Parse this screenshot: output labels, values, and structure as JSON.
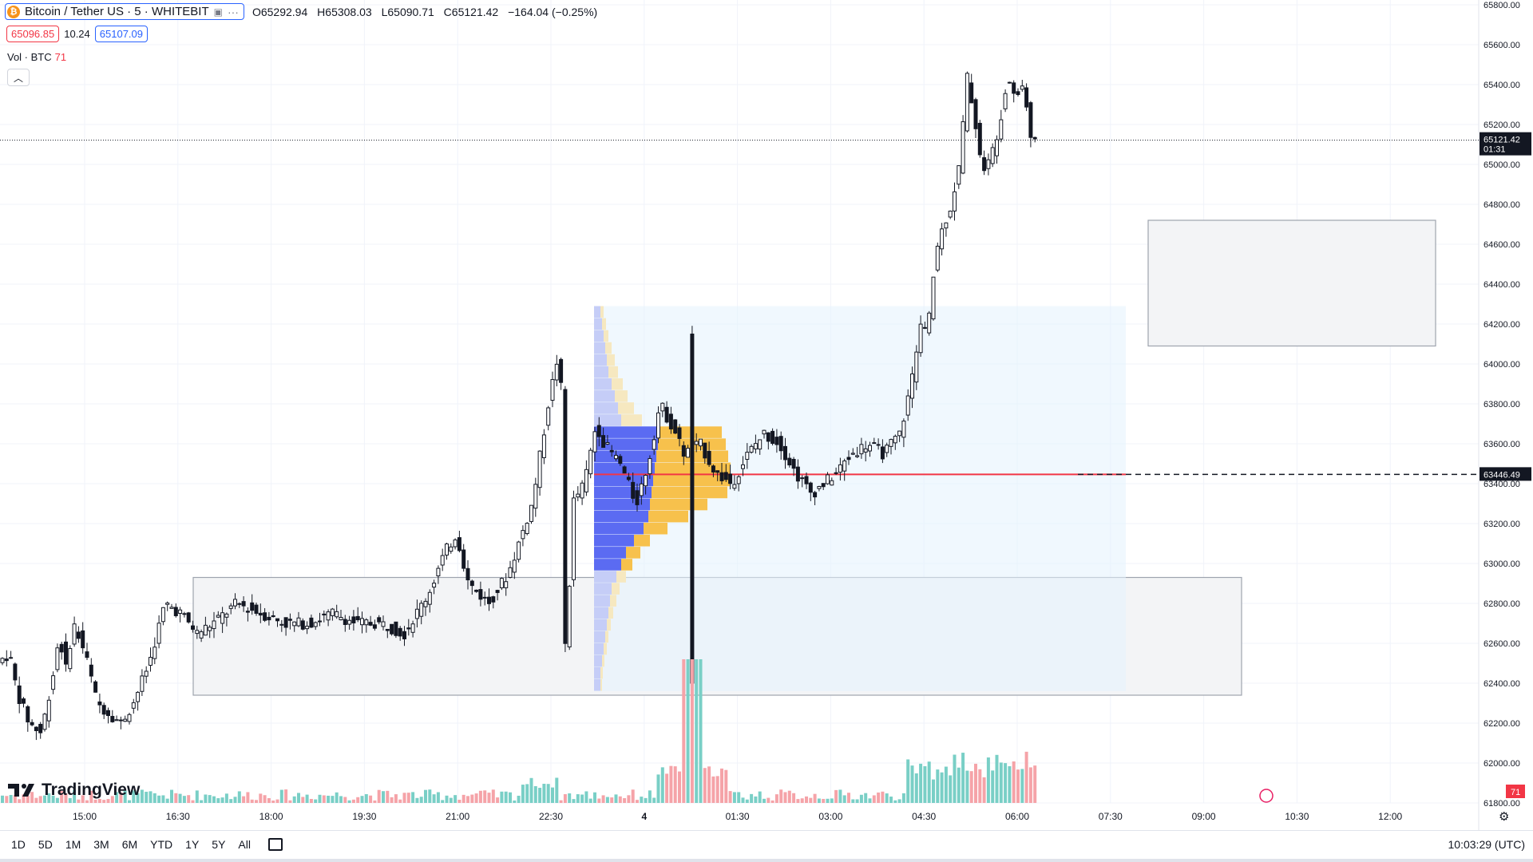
{
  "header": {
    "symbol": "Bitcoin / Tether US · 5 · WHITEBIT",
    "ohlc": {
      "o": "65292.94",
      "h": "65308.03",
      "l": "65090.71",
      "c": "65121.42",
      "chg": "−164.04 (−0.25%)"
    },
    "sell_price": "65096.85",
    "spread": "10.24",
    "buy_price": "65107.09",
    "volume_label": "Vol · BTC",
    "volume_value": "71"
  },
  "brand": "TradingView",
  "timeframes": [
    "1D",
    "5D",
    "1M",
    "3M",
    "6M",
    "YTD",
    "1Y",
    "5Y",
    "All"
  ],
  "clock": "10:03:29 (UTC)",
  "colors": {
    "up": "#26a69a",
    "down": "#ef5350",
    "candle": "#131722",
    "poc": "#f23645",
    "zone": "#f3f4f6",
    "profile_blue": "#5b6bf2",
    "profile_yellow": "#f7c14c"
  },
  "chart_data": {
    "type": "candlestick",
    "y_ticks": [
      "65800.00",
      "65600.00",
      "65400.00",
      "65200.00",
      "65000.00",
      "64800.00",
      "64600.00",
      "64400.00",
      "64200.00",
      "64000.00",
      "63800.00",
      "63600.00",
      "63400.00",
      "63200.00",
      "63000.00",
      "62800.00",
      "62600.00",
      "62400.00",
      "62200.00",
      "62000.00",
      "61800.00"
    ],
    "y_range": [
      61800,
      65800
    ],
    "x_ticks": [
      "15:00",
      "16:30",
      "18:00",
      "19:30",
      "21:00",
      "22:30",
      "4",
      "01:30",
      "03:00",
      "04:30",
      "06:00",
      "07:30",
      "09:00",
      "10:30",
      "12:00"
    ],
    "last_price": "65121.42",
    "last_countdown": "01:31",
    "poc_price": "63446.49",
    "volume_last": "71",
    "zones": [
      {
        "name": "lower-range",
        "from": 62340,
        "to": 62930
      },
      {
        "name": "upper-gap",
        "from": 64090,
        "to": 64720
      }
    ],
    "path": [
      [
        0,
        62500
      ],
      [
        15,
        62550
      ],
      [
        25,
        62350
      ],
      [
        40,
        62200
      ],
      [
        55,
        62150
      ],
      [
        70,
        62450
      ],
      [
        78,
        62650
      ],
      [
        85,
        62450
      ],
      [
        95,
        62700
      ],
      [
        110,
        62550
      ],
      [
        125,
        62300
      ],
      [
        140,
        62250
      ],
      [
        155,
        62200
      ],
      [
        170,
        62300
      ],
      [
        190,
        62500
      ],
      [
        210,
        62800
      ],
      [
        230,
        62750
      ],
      [
        250,
        62650
      ],
      [
        270,
        62700
      ],
      [
        300,
        62800
      ],
      [
        330,
        62750
      ],
      [
        360,
        62700
      ],
      [
        390,
        62700
      ],
      [
        420,
        62750
      ],
      [
        450,
        62700
      ],
      [
        480,
        62700
      ],
      [
        510,
        62650
      ],
      [
        540,
        62850
      ],
      [
        560,
        63050
      ],
      [
        575,
        63150
      ],
      [
        590,
        62900
      ],
      [
        615,
        62800
      ],
      [
        640,
        62950
      ],
      [
        670,
        63300
      ],
      [
        690,
        63800
      ],
      [
        705,
        64100
      ],
      [
        712,
        62400
      ],
      [
        720,
        63300
      ],
      [
        735,
        63400
      ],
      [
        750,
        63700
      ],
      [
        760,
        63600
      ],
      [
        780,
        63500
      ],
      [
        800,
        63300
      ],
      [
        815,
        63500
      ],
      [
        830,
        63800
      ],
      [
        850,
        63650
      ],
      [
        860,
        63550
      ],
      [
        880,
        63600
      ],
      [
        900,
        63450
      ],
      [
        920,
        63400
      ],
      [
        940,
        63550
      ],
      [
        960,
        63650
      ],
      [
        980,
        63600
      ],
      [
        1000,
        63450
      ],
      [
        1020,
        63350
      ],
      [
        1035,
        63400
      ],
      [
        1050,
        63450
      ],
      [
        1070,
        63550
      ],
      [
        1090,
        63600
      ],
      [
        1110,
        63550
      ],
      [
        1130,
        63650
      ],
      [
        1145,
        63900
      ],
      [
        1155,
        64200
      ],
      [
        1165,
        64150
      ],
      [
        1175,
        64550
      ],
      [
        1185,
        64700
      ],
      [
        1195,
        64800
      ],
      [
        1205,
        65000
      ],
      [
        1215,
        65450
      ],
      [
        1225,
        65200
      ],
      [
        1235,
        64950
      ],
      [
        1245,
        65050
      ],
      [
        1255,
        65200
      ],
      [
        1265,
        65450
      ],
      [
        1275,
        65350
      ],
      [
        1285,
        65400
      ],
      [
        1295,
        65121
      ]
    ]
  }
}
